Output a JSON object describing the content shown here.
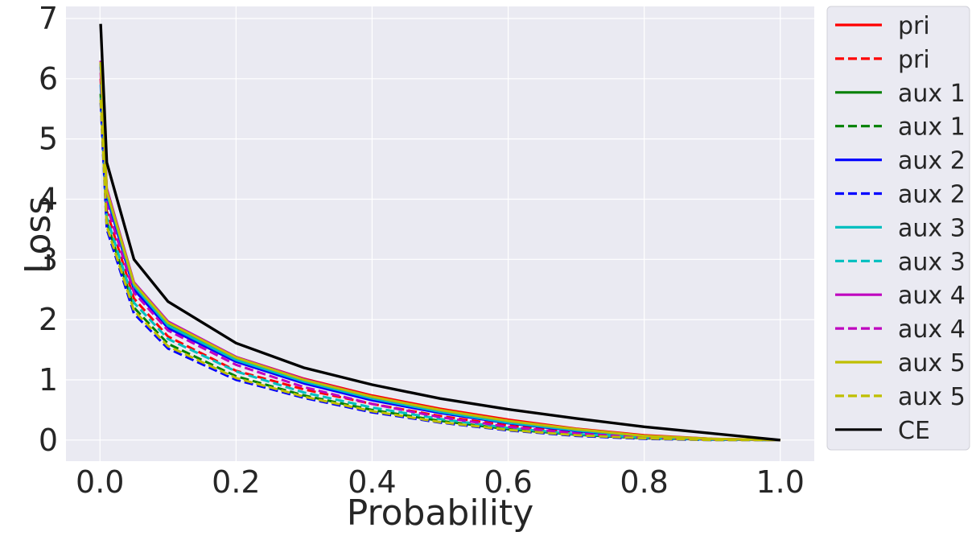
{
  "chart_data": {
    "type": "line",
    "xlabel": "Probability",
    "ylabel": "Loss",
    "xlim": [
      -0.05,
      1.05
    ],
    "ylim": [
      -0.35,
      7.2
    ],
    "grid": true,
    "legend_placement": "outside-right",
    "x_ticks": [
      0.0,
      0.2,
      0.4,
      0.6,
      0.8,
      1.0
    ],
    "x_tick_labels": [
      "0.0",
      "0.2",
      "0.4",
      "0.6",
      "0.8",
      "1.0"
    ],
    "y_ticks": [
      0,
      1,
      2,
      3,
      4,
      5,
      6,
      7
    ],
    "y_tick_labels": [
      "0",
      "1",
      "2",
      "3",
      "4",
      "5",
      "6",
      "7"
    ],
    "x": [
      0.001,
      0.01,
      0.05,
      0.1,
      0.2,
      0.3,
      0.4,
      0.5,
      0.6,
      0.7,
      0.8,
      0.9,
      1.0
    ],
    "series": [
      {
        "name": "pri",
        "style": "solid",
        "color": "#ff0000",
        "values": [
          6.3,
          4.15,
          2.6,
          1.95,
          1.38,
          1.02,
          0.74,
          0.52,
          0.34,
          0.19,
          0.08,
          0.02,
          0.0
        ]
      },
      {
        "name": "pri",
        "style": "dashed",
        "color": "#ff0000",
        "values": [
          6.0,
          3.8,
          2.35,
          1.72,
          1.15,
          0.84,
          0.6,
          0.4,
          0.24,
          0.12,
          0.05,
          0.01,
          0.0
        ]
      },
      {
        "name": "aux 1",
        "style": "solid",
        "color": "#008000",
        "values": [
          6.25,
          4.12,
          2.58,
          1.93,
          1.35,
          0.99,
          0.7,
          0.48,
          0.3,
          0.16,
          0.06,
          0.01,
          0.0
        ]
      },
      {
        "name": "aux 1",
        "style": "dashed",
        "color": "#008000",
        "values": [
          5.75,
          3.62,
          2.2,
          1.6,
          1.06,
          0.74,
          0.5,
          0.32,
          0.18,
          0.09,
          0.03,
          0.01,
          0.0
        ]
      },
      {
        "name": "aux 2",
        "style": "solid",
        "color": "#0000ff",
        "values": [
          6.2,
          4.05,
          2.5,
          1.86,
          1.3,
          0.94,
          0.66,
          0.45,
          0.28,
          0.15,
          0.06,
          0.01,
          0.0
        ]
      },
      {
        "name": "aux 2",
        "style": "dashed",
        "color": "#0000ff",
        "values": [
          5.6,
          3.5,
          2.1,
          1.52,
          1.0,
          0.7,
          0.46,
          0.29,
          0.16,
          0.07,
          0.02,
          0.0,
          0.0
        ]
      },
      {
        "name": "aux 3",
        "style": "solid",
        "color": "#00bfbf",
        "values": [
          6.25,
          4.1,
          2.56,
          1.9,
          1.33,
          0.97,
          0.69,
          0.47,
          0.29,
          0.16,
          0.06,
          0.01,
          0.0
        ]
      },
      {
        "name": "aux 3",
        "style": "dashed",
        "color": "#00bfbf",
        "values": [
          5.9,
          3.7,
          2.28,
          1.68,
          1.14,
          0.79,
          0.54,
          0.35,
          0.2,
          0.1,
          0.04,
          0.01,
          0.0
        ]
      },
      {
        "name": "aux 4",
        "style": "solid",
        "color": "#bf00bf",
        "values": [
          6.3,
          4.18,
          2.62,
          1.97,
          1.38,
          1.01,
          0.72,
          0.5,
          0.32,
          0.18,
          0.07,
          0.02,
          0.0
        ]
      },
      {
        "name": "aux 4",
        "style": "dashed",
        "color": "#bf00bf",
        "values": [
          6.1,
          3.9,
          2.45,
          1.82,
          1.25,
          0.88,
          0.6,
          0.38,
          0.22,
          0.11,
          0.04,
          0.01,
          0.0
        ]
      },
      {
        "name": "aux 5",
        "style": "solid",
        "color": "#bfbf00",
        "values": [
          6.28,
          4.14,
          2.6,
          1.95,
          1.37,
          1.0,
          0.72,
          0.5,
          0.32,
          0.18,
          0.07,
          0.02,
          0.0
        ]
      },
      {
        "name": "aux 5",
        "style": "dashed",
        "color": "#bfbf00",
        "values": [
          5.65,
          3.55,
          2.15,
          1.56,
          1.03,
          0.72,
          0.48,
          0.3,
          0.17,
          0.08,
          0.03,
          0.0,
          0.0
        ]
      },
      {
        "name": "CE",
        "style": "solid",
        "color": "#000000",
        "values": [
          6.91,
          4.61,
          3.0,
          2.3,
          1.61,
          1.2,
          0.92,
          0.69,
          0.51,
          0.36,
          0.22,
          0.11,
          0.0
        ]
      }
    ]
  }
}
